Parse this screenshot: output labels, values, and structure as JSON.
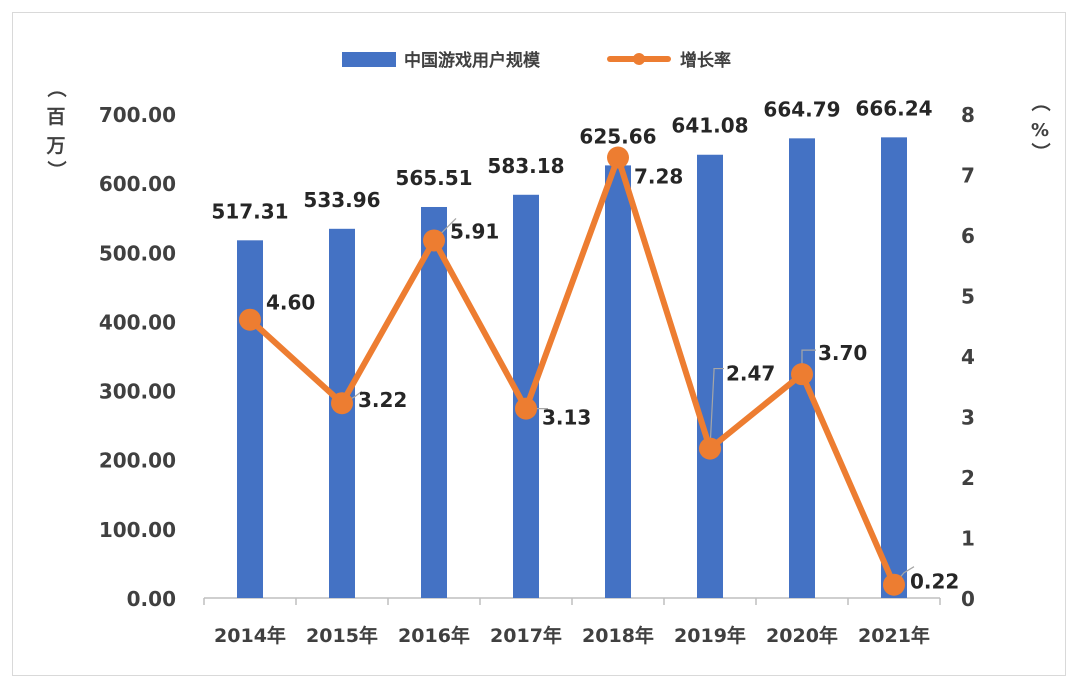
{
  "chart_data": {
    "type": "bar",
    "categories": [
      "2014年",
      "2015年",
      "2016年",
      "2017年",
      "2018年",
      "2019年",
      "2020年",
      "2021年"
    ],
    "series": [
      {
        "name": "中国游戏用户规模",
        "type": "bar",
        "axis": "left",
        "values": [
          517.31,
          533.96,
          565.51,
          583.18,
          625.66,
          641.08,
          664.79,
          666.24
        ],
        "labels": [
          "517.31",
          "533.96",
          "565.51",
          "583.18",
          "625.66",
          "641.08",
          "664.79",
          "666.24"
        ],
        "color": "#4472c4"
      },
      {
        "name": "增长率",
        "type": "line",
        "axis": "right",
        "values": [
          4.6,
          3.22,
          5.91,
          3.13,
          7.28,
          2.47,
          3.7,
          0.22
        ],
        "labels": [
          "4.60",
          "3.22",
          "5.91",
          "3.13",
          "7.28",
          "2.47",
          "3.70",
          "0.22"
        ],
        "color": "#ed7d31"
      }
    ],
    "y_left": {
      "label_chars": [
        "（",
        "百",
        "万",
        "）"
      ],
      "ylim": [
        0,
        700
      ],
      "ticks": [
        "0.00",
        "100.00",
        "200.00",
        "300.00",
        "400.00",
        "500.00",
        "600.00",
        "700.00"
      ]
    },
    "y_right": {
      "label_chars": [
        "（",
        "%",
        "）"
      ],
      "ylim": [
        0,
        8
      ],
      "ticks": [
        "0",
        "1",
        "2",
        "3",
        "4",
        "5",
        "6",
        "7",
        "8"
      ]
    },
    "legend": "top-center",
    "grid": false
  }
}
